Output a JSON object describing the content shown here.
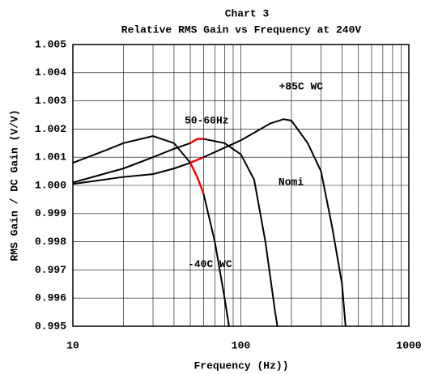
{
  "chart_data": {
    "type": "line",
    "title": "Chart 3",
    "subtitle": "Relative RMS Gain vs Frequency at 240V",
    "x_label": "Frequency (Hz))",
    "y_label": "RMS Gain / DC Gain (V/V)",
    "log_x": true,
    "grid": true,
    "xlim": [
      10,
      1000
    ],
    "xticks": [
      10,
      100,
      1000
    ],
    "ylim": [
      0.995,
      1.005
    ],
    "yticks": [
      1.005,
      1.004,
      1.003,
      1.002,
      1.001,
      {
        "value": 1,
        "label": "1.000"
      },
      0.999,
      0.998,
      0.997,
      0.996,
      0.995
    ],
    "highlight": {
      "label": "50-60Hz",
      "range": [
        50,
        60
      ],
      "color": "#ff0000"
    },
    "series": [
      {
        "name": "-40C WC",
        "color": "#000000",
        "x": [
          10,
          15,
          20,
          30,
          40,
          50,
          55,
          60,
          70,
          80,
          85
        ],
        "values": [
          1.0008,
          1.0012,
          1.0015,
          1.00175,
          1.0015,
          1.0008,
          1.0003,
          0.9997,
          0.998,
          0.996,
          0.995
        ]
      },
      {
        "name": "Nomi",
        "color": "#000000",
        "x": [
          10,
          20,
          30,
          40,
          50,
          55,
          60,
          80,
          100,
          120,
          140,
          160,
          165
        ],
        "values": [
          1.0001,
          1.0006,
          1.001,
          1.0013,
          1.0015,
          1.00165,
          1.00165,
          1.0015,
          1.0011,
          1.0002,
          0.998,
          0.9955,
          0.995
        ]
      },
      {
        "name": "+85C WC",
        "color": "#000000",
        "x": [
          10,
          20,
          30,
          40,
          50,
          60,
          100,
          150,
          180,
          200,
          250,
          300,
          350,
          400,
          420
        ],
        "values": [
          1.00005,
          1.0003,
          1.0004,
          1.0006,
          1.0008,
          1.001,
          1.0016,
          1.0022,
          1.00235,
          1.0023,
          1.0015,
          1.0005,
          0.9985,
          0.9965,
          0.995
        ]
      }
    ]
  }
}
